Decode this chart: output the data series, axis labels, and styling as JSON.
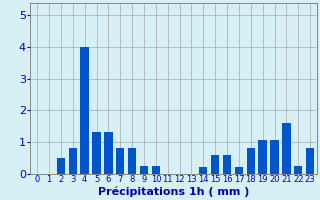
{
  "hours": [
    0,
    1,
    2,
    3,
    4,
    5,
    6,
    7,
    8,
    9,
    10,
    11,
    12,
    13,
    14,
    15,
    16,
    17,
    18,
    19,
    20,
    21,
    22,
    23
  ],
  "values": [
    0,
    0,
    0.5,
    0.8,
    4.0,
    1.3,
    1.3,
    0.8,
    0.8,
    0.25,
    0.25,
    0,
    0,
    0,
    0.2,
    0.6,
    0.6,
    0.2,
    0.8,
    1.05,
    1.05,
    1.6,
    0.25,
    0.8
  ],
  "bar_color": "#0055cc",
  "background_color": "#d6f0f5",
  "grid_color": "#aaaaaa",
  "axis_label_color": "#0000bb",
  "tick_color": "#0000bb",
  "xlabel": "Précipitations 1h ( mm )",
  "ylim": [
    0,
    5.4
  ],
  "yticks": [
    0,
    1,
    2,
    3,
    4,
    5
  ],
  "label_fontsize": 7,
  "xlabel_fontsize": 8
}
